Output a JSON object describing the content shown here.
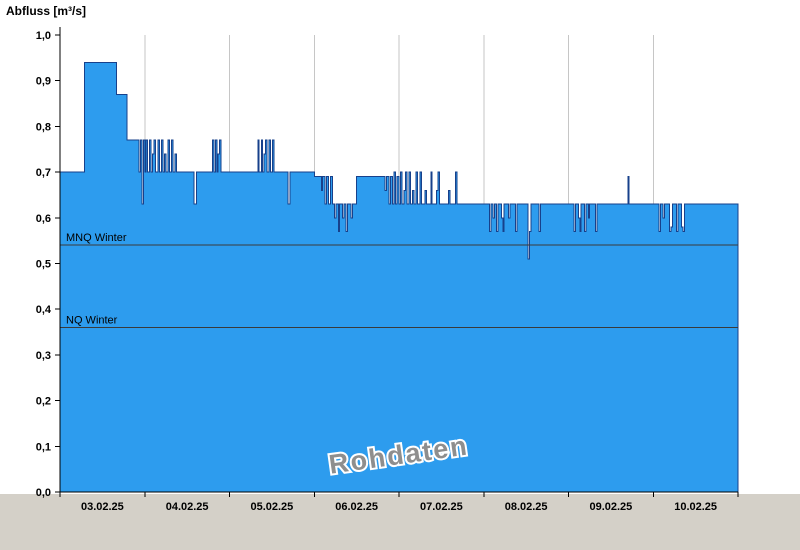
{
  "title": "Abfluss [m³/s]",
  "watermark": "Rohdaten",
  "chart_data": {
    "type": "area",
    "title": "Abfluss [m³/s]",
    "ylabel": "Abfluss [m³/s]",
    "xlim": [
      0,
      192
    ],
    "ylim": [
      0,
      1
    ],
    "x_unit": "hours since 03.02.25 00:00",
    "categories": [
      "03.02.25",
      "04.02.25",
      "05.02.25",
      "06.02.25",
      "07.02.25",
      "08.02.25",
      "09.02.25",
      "10.02.25"
    ],
    "yticks": [
      0,
      0.1,
      0.2,
      0.3,
      0.4,
      0.5,
      0.6,
      0.7,
      0.8,
      0.9,
      1.0
    ],
    "ytick_labels": [
      "0,0",
      "0,1",
      "0,2",
      "0,3",
      "0,4",
      "0,5",
      "0,6",
      "0,7",
      "0,8",
      "0,9",
      "1,0"
    ],
    "grid": "vertical lines at day boundaries",
    "legend": "none",
    "reference_lines": [
      {
        "label": "MNQ Winter",
        "value": 0.54
      },
      {
        "label": "NQ Winter",
        "value": 0.36
      }
    ],
    "series": [
      {
        "name": "Abfluss Rohdaten",
        "steps": [
          [
            0,
            0.7
          ],
          [
            7,
            0.94
          ],
          [
            16,
            0.87
          ],
          [
            19,
            0.77
          ],
          [
            22.4,
            0.7
          ],
          [
            22.8,
            0.77
          ],
          [
            23.2,
            0.63
          ],
          [
            23.6,
            0.77
          ],
          [
            24,
            0.7
          ],
          [
            24.4,
            0.77
          ],
          [
            24.8,
            0.7
          ],
          [
            25.4,
            0.77
          ],
          [
            25.8,
            0.7
          ],
          [
            26.2,
            0.74
          ],
          [
            26.6,
            0.77
          ],
          [
            27,
            0.7
          ],
          [
            27.8,
            0.77
          ],
          [
            28.2,
            0.7
          ],
          [
            28.8,
            0.77
          ],
          [
            29.2,
            0.7
          ],
          [
            29.6,
            0.74
          ],
          [
            30,
            0.7
          ],
          [
            30.6,
            0.77
          ],
          [
            31,
            0.7
          ],
          [
            31.6,
            0.77
          ],
          [
            32,
            0.7
          ],
          [
            32.6,
            0.74
          ],
          [
            33,
            0.7
          ],
          [
            38,
            0.63
          ],
          [
            38.6,
            0.7
          ],
          [
            43.2,
            0.77
          ],
          [
            43.6,
            0.7
          ],
          [
            44,
            0.77
          ],
          [
            44.4,
            0.7
          ],
          [
            44.8,
            0.74
          ],
          [
            45.2,
            0.77
          ],
          [
            45.6,
            0.7
          ],
          [
            56,
            0.77
          ],
          [
            56.4,
            0.7
          ],
          [
            57,
            0.77
          ],
          [
            57.4,
            0.7
          ],
          [
            57.8,
            0.74
          ],
          [
            58.2,
            0.77
          ],
          [
            58.6,
            0.7
          ],
          [
            59.2,
            0.77
          ],
          [
            59.6,
            0.7
          ],
          [
            60.2,
            0.77
          ],
          [
            60.6,
            0.7
          ],
          [
            64.5,
            0.63
          ],
          [
            65.1,
            0.7
          ],
          [
            72,
            0.69
          ],
          [
            74,
            0.66
          ],
          [
            74.4,
            0.69
          ],
          [
            75,
            0.63
          ],
          [
            75.4,
            0.69
          ],
          [
            76,
            0.63
          ],
          [
            76.6,
            0.69
          ],
          [
            77.2,
            0.63
          ],
          [
            77.8,
            0.6
          ],
          [
            78.2,
            0.63
          ],
          [
            78.8,
            0.57
          ],
          [
            79.2,
            0.63
          ],
          [
            80,
            0.6
          ],
          [
            80.4,
            0.63
          ],
          [
            81,
            0.57
          ],
          [
            81.4,
            0.63
          ],
          [
            82.4,
            0.6
          ],
          [
            82.8,
            0.63
          ],
          [
            84,
            0.69
          ],
          [
            92,
            0.66
          ],
          [
            92.4,
            0.69
          ],
          [
            93.2,
            0.63
          ],
          [
            93.6,
            0.69
          ],
          [
            94.2,
            0.63
          ],
          [
            94.6,
            0.7
          ],
          [
            95,
            0.63
          ],
          [
            95.4,
            0.69
          ],
          [
            96,
            0.63
          ],
          [
            96.4,
            0.7
          ],
          [
            96.8,
            0.63
          ],
          [
            97.4,
            0.66
          ],
          [
            97.8,
            0.7
          ],
          [
            98.2,
            0.63
          ],
          [
            98.8,
            0.7
          ],
          [
            99.2,
            0.63
          ],
          [
            99.8,
            0.66
          ],
          [
            100.2,
            0.63
          ],
          [
            100.8,
            0.7
          ],
          [
            101.2,
            0.63
          ],
          [
            102,
            0.7
          ],
          [
            102.4,
            0.63
          ],
          [
            103.4,
            0.66
          ],
          [
            103.8,
            0.63
          ],
          [
            105,
            0.7
          ],
          [
            105.4,
            0.63
          ],
          [
            106.6,
            0.66
          ],
          [
            107,
            0.7
          ],
          [
            107.4,
            0.63
          ],
          [
            110,
            0.66
          ],
          [
            110.4,
            0.63
          ],
          [
            112,
            0.7
          ],
          [
            112.4,
            0.63
          ],
          [
            120,
            0.63
          ],
          [
            121.6,
            0.57
          ],
          [
            122,
            0.63
          ],
          [
            122.6,
            0.6
          ],
          [
            123,
            0.63
          ],
          [
            123.6,
            0.57
          ],
          [
            124,
            0.63
          ],
          [
            125,
            0.6
          ],
          [
            125.4,
            0.57
          ],
          [
            125.8,
            0.63
          ],
          [
            127,
            0.6
          ],
          [
            127.4,
            0.63
          ],
          [
            129,
            0.57
          ],
          [
            129.4,
            0.63
          ],
          [
            132.6,
            0.51
          ],
          [
            133,
            0.57
          ],
          [
            133.4,
            0.63
          ],
          [
            135.6,
            0.57
          ],
          [
            136,
            0.63
          ],
          [
            145.6,
            0.57
          ],
          [
            146,
            0.63
          ],
          [
            146.8,
            0.6
          ],
          [
            147.2,
            0.57
          ],
          [
            147.6,
            0.63
          ],
          [
            148.6,
            0.57
          ],
          [
            149,
            0.63
          ],
          [
            149.6,
            0.6
          ],
          [
            150,
            0.63
          ],
          [
            151.6,
            0.57
          ],
          [
            152,
            0.63
          ],
          [
            160.8,
            0.69
          ],
          [
            161.2,
            0.63
          ],
          [
            169.6,
            0.57
          ],
          [
            170,
            0.63
          ],
          [
            170.8,
            0.6
          ],
          [
            171.2,
            0.63
          ],
          [
            172.6,
            0.57
          ],
          [
            173,
            0.58
          ],
          [
            173.4,
            0.63
          ],
          [
            174.6,
            0.57
          ],
          [
            175,
            0.63
          ],
          [
            176,
            0.58
          ],
          [
            176.4,
            0.57
          ],
          [
            176.8,
            0.63
          ],
          [
            192,
            0.63
          ]
        ]
      }
    ],
    "colors": {
      "fill": "#2d9cee",
      "line": "#17408b",
      "grid": "#c6c6c6",
      "reference": "#3a3a3a",
      "footer": "#d4d0c8",
      "watermark": "#8e8e8e"
    }
  }
}
